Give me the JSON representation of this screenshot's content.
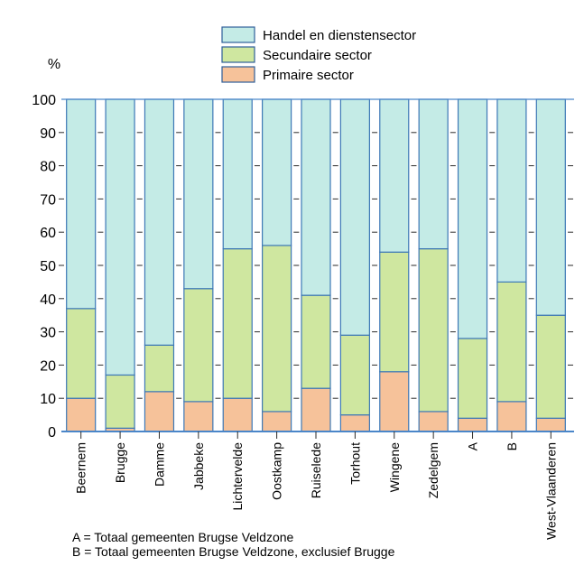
{
  "chart_data": {
    "type": "bar",
    "stacked": true,
    "percent_symbol": "%",
    "categories": [
      "Beernem",
      "Brugge",
      "Damme",
      "Jabbeke",
      "Lichtervelde",
      "Oostkamp",
      "Ruiselede",
      "Torhout",
      "Wingene",
      "Zedelgem",
      "A",
      "B",
      "West-Vlaanderen"
    ],
    "series": [
      {
        "name": "Primaire sector",
        "color": "#f6c29a",
        "values": [
          10,
          1,
          12,
          9,
          10,
          6,
          13,
          5,
          18,
          6,
          4,
          9,
          4
        ]
      },
      {
        "name": "Secundaire sector",
        "color": "#cfe7a0",
        "values": [
          27,
          16,
          14,
          34,
          45,
          50,
          28,
          24,
          36,
          49,
          24,
          36,
          31
        ]
      },
      {
        "name": "Handel en dienstensector",
        "color": "#c4ebe6",
        "values": [
          63,
          83,
          74,
          57,
          45,
          44,
          59,
          71,
          46,
          45,
          72,
          55,
          65
        ]
      }
    ],
    "legend_order": [
      "Handel en dienstensector",
      "Secundaire sector",
      "Primaire sector"
    ],
    "yticks": [
      0,
      10,
      20,
      30,
      40,
      50,
      60,
      70,
      80,
      90,
      100
    ],
    "ylim": [
      0,
      100
    ],
    "grid": false,
    "legend_position": "top",
    "footnotes": [
      "A = Totaal gemeenten Brugse Veldzone",
      "B = Totaal gemeenten Brugse Veldzone, exclusief Brugge"
    ],
    "axis_color": "#4a86c9",
    "bar_outline_color": "#3d78b6"
  }
}
